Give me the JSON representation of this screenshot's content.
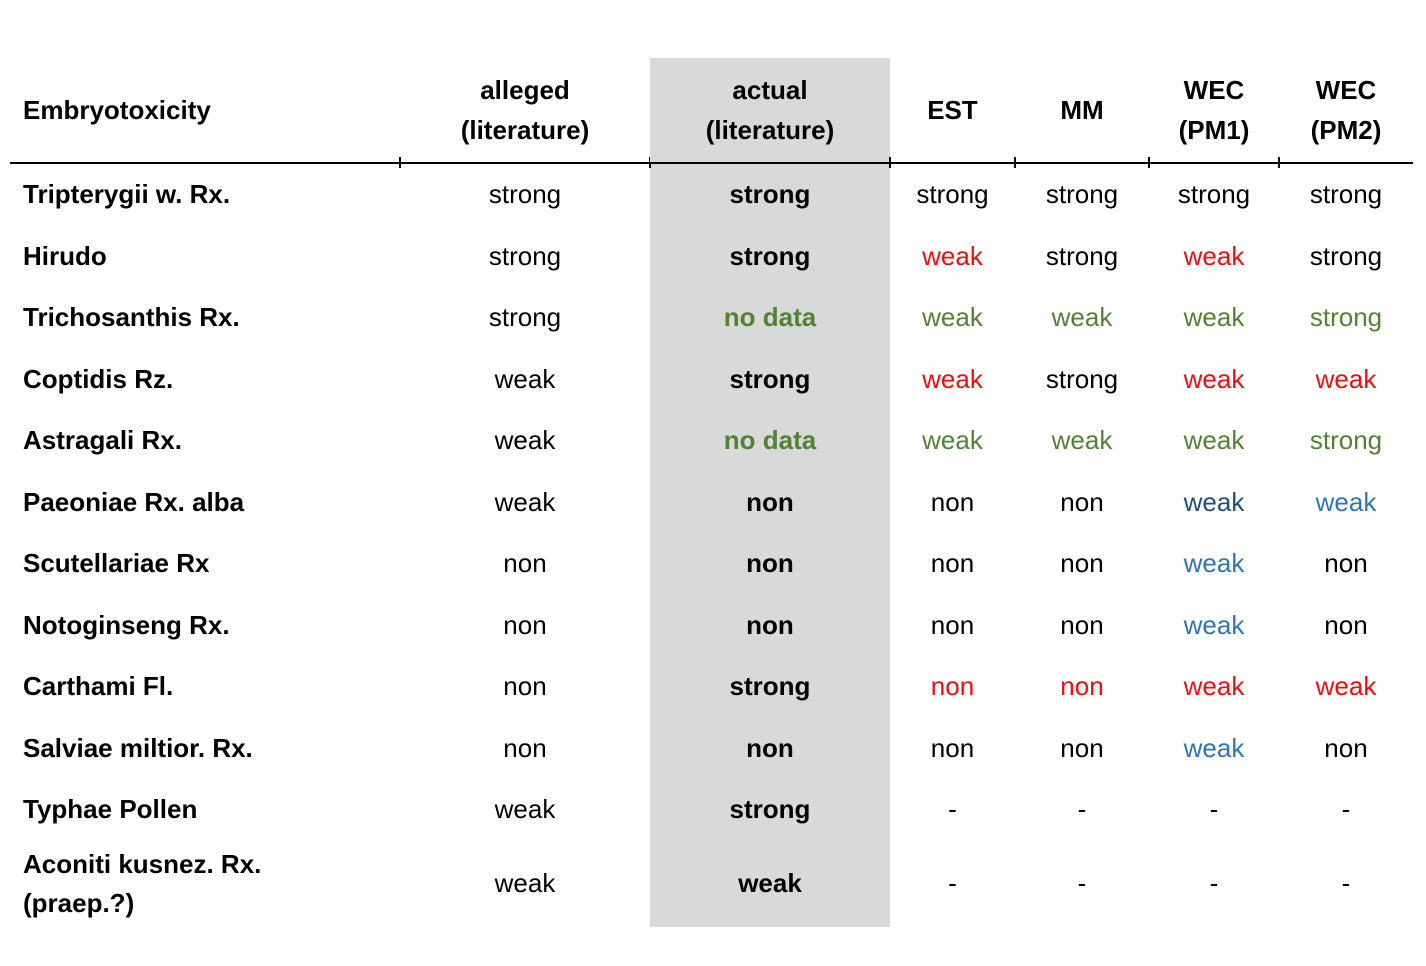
{
  "chart_data": {
    "type": "table",
    "title": "",
    "headers": [
      "Embryotoxicity",
      "alleged\n(literature)",
      "actual\n(literature)",
      "EST",
      "MM",
      "WEC\n(PM1)",
      "WEC\n(PM2)"
    ],
    "column_keys": [
      "alleged",
      "actual",
      "est",
      "mm",
      "wec-pm1",
      "wec-pm2"
    ],
    "highlighted_column": "actual",
    "column_highlight_bg": "#d9d9d9",
    "header_rule_color": "#000000",
    "colors": {
      "black": "#000000",
      "red": "#f20d0d",
      "green": "#538135",
      "blue": "#2e75b6",
      "darkblue": "#1f4e79"
    },
    "rows": [
      {
        "name": "Tripterygii w. Rx.",
        "cells": [
          {
            "text": "strong",
            "color": "black"
          },
          {
            "text": "strong",
            "color": "black"
          },
          {
            "text": "strong",
            "color": "black"
          },
          {
            "text": "strong",
            "color": "black"
          },
          {
            "text": "strong",
            "color": "black"
          },
          {
            "text": "strong",
            "color": "black"
          }
        ]
      },
      {
        "name": "Hirudo",
        "cells": [
          {
            "text": "strong",
            "color": "black"
          },
          {
            "text": "strong",
            "color": "black"
          },
          {
            "text": "weak",
            "color": "red"
          },
          {
            "text": "strong",
            "color": "black"
          },
          {
            "text": "weak",
            "color": "red"
          },
          {
            "text": "strong",
            "color": "black"
          }
        ]
      },
      {
        "name": "Trichosanthis Rx.",
        "cells": [
          {
            "text": "strong",
            "color": "black"
          },
          {
            "text": "no data",
            "color": "green"
          },
          {
            "text": "weak",
            "color": "green"
          },
          {
            "text": "weak",
            "color": "green"
          },
          {
            "text": "weak",
            "color": "green"
          },
          {
            "text": "strong",
            "color": "green"
          }
        ]
      },
      {
        "name": "Coptidis Rz.",
        "cells": [
          {
            "text": "weak",
            "color": "black"
          },
          {
            "text": "strong",
            "color": "black"
          },
          {
            "text": "weak",
            "color": "red"
          },
          {
            "text": "strong",
            "color": "black"
          },
          {
            "text": "weak",
            "color": "red"
          },
          {
            "text": "weak",
            "color": "red"
          }
        ]
      },
      {
        "name": "Astragali Rx.",
        "cells": [
          {
            "text": "weak",
            "color": "black"
          },
          {
            "text": "no data",
            "color": "green"
          },
          {
            "text": "weak",
            "color": "green"
          },
          {
            "text": "weak",
            "color": "green"
          },
          {
            "text": "weak",
            "color": "green"
          },
          {
            "text": "strong",
            "color": "green"
          }
        ]
      },
      {
        "name": "Paeoniae Rx. alba",
        "cells": [
          {
            "text": "weak",
            "color": "black"
          },
          {
            "text": "non",
            "color": "black"
          },
          {
            "text": "non",
            "color": "black"
          },
          {
            "text": "non",
            "color": "black"
          },
          {
            "text": "weak",
            "color": "darkblue"
          },
          {
            "text": "weak",
            "color": "blue"
          }
        ]
      },
      {
        "name": "Scutellariae Rx",
        "cells": [
          {
            "text": "non",
            "color": "black"
          },
          {
            "text": "non",
            "color": "black"
          },
          {
            "text": "non",
            "color": "black"
          },
          {
            "text": "non",
            "color": "black"
          },
          {
            "text": "weak",
            "color": "blue"
          },
          {
            "text": "non",
            "color": "black"
          }
        ]
      },
      {
        "name": "Notoginseng Rx.",
        "cells": [
          {
            "text": "non",
            "color": "black"
          },
          {
            "text": "non",
            "color": "black"
          },
          {
            "text": "non",
            "color": "black"
          },
          {
            "text": "non",
            "color": "black"
          },
          {
            "text": "weak",
            "color": "blue"
          },
          {
            "text": "non",
            "color": "black"
          }
        ]
      },
      {
        "name": "Carthami Fl.",
        "cells": [
          {
            "text": "non",
            "color": "black"
          },
          {
            "text": "strong",
            "color": "black"
          },
          {
            "text": "non",
            "color": "red"
          },
          {
            "text": "non",
            "color": "red"
          },
          {
            "text": "weak",
            "color": "red"
          },
          {
            "text": "weak",
            "color": "red"
          }
        ]
      },
      {
        "name": "Salviae miltior. Rx.",
        "cells": [
          {
            "text": "non",
            "color": "black"
          },
          {
            "text": "non",
            "color": "black"
          },
          {
            "text": "non",
            "color": "black"
          },
          {
            "text": "non",
            "color": "black"
          },
          {
            "text": "weak",
            "color": "blue"
          },
          {
            "text": "non",
            "color": "black"
          }
        ]
      },
      {
        "name": "Typhae Pollen",
        "cells": [
          {
            "text": "weak",
            "color": "black"
          },
          {
            "text": "strong",
            "color": "black"
          },
          {
            "text": "-",
            "color": "black"
          },
          {
            "text": "-",
            "color": "black"
          },
          {
            "text": "-",
            "color": "black"
          },
          {
            "text": "-",
            "color": "black"
          }
        ]
      },
      {
        "name": "Aconiti kusnez. Rx.\n(praep.?)",
        "cells": [
          {
            "text": "weak",
            "color": "black"
          },
          {
            "text": "weak",
            "color": "black"
          },
          {
            "text": "-",
            "color": "black"
          },
          {
            "text": "-",
            "color": "black"
          },
          {
            "text": "-",
            "color": "black"
          },
          {
            "text": "-",
            "color": "black"
          }
        ]
      }
    ]
  }
}
